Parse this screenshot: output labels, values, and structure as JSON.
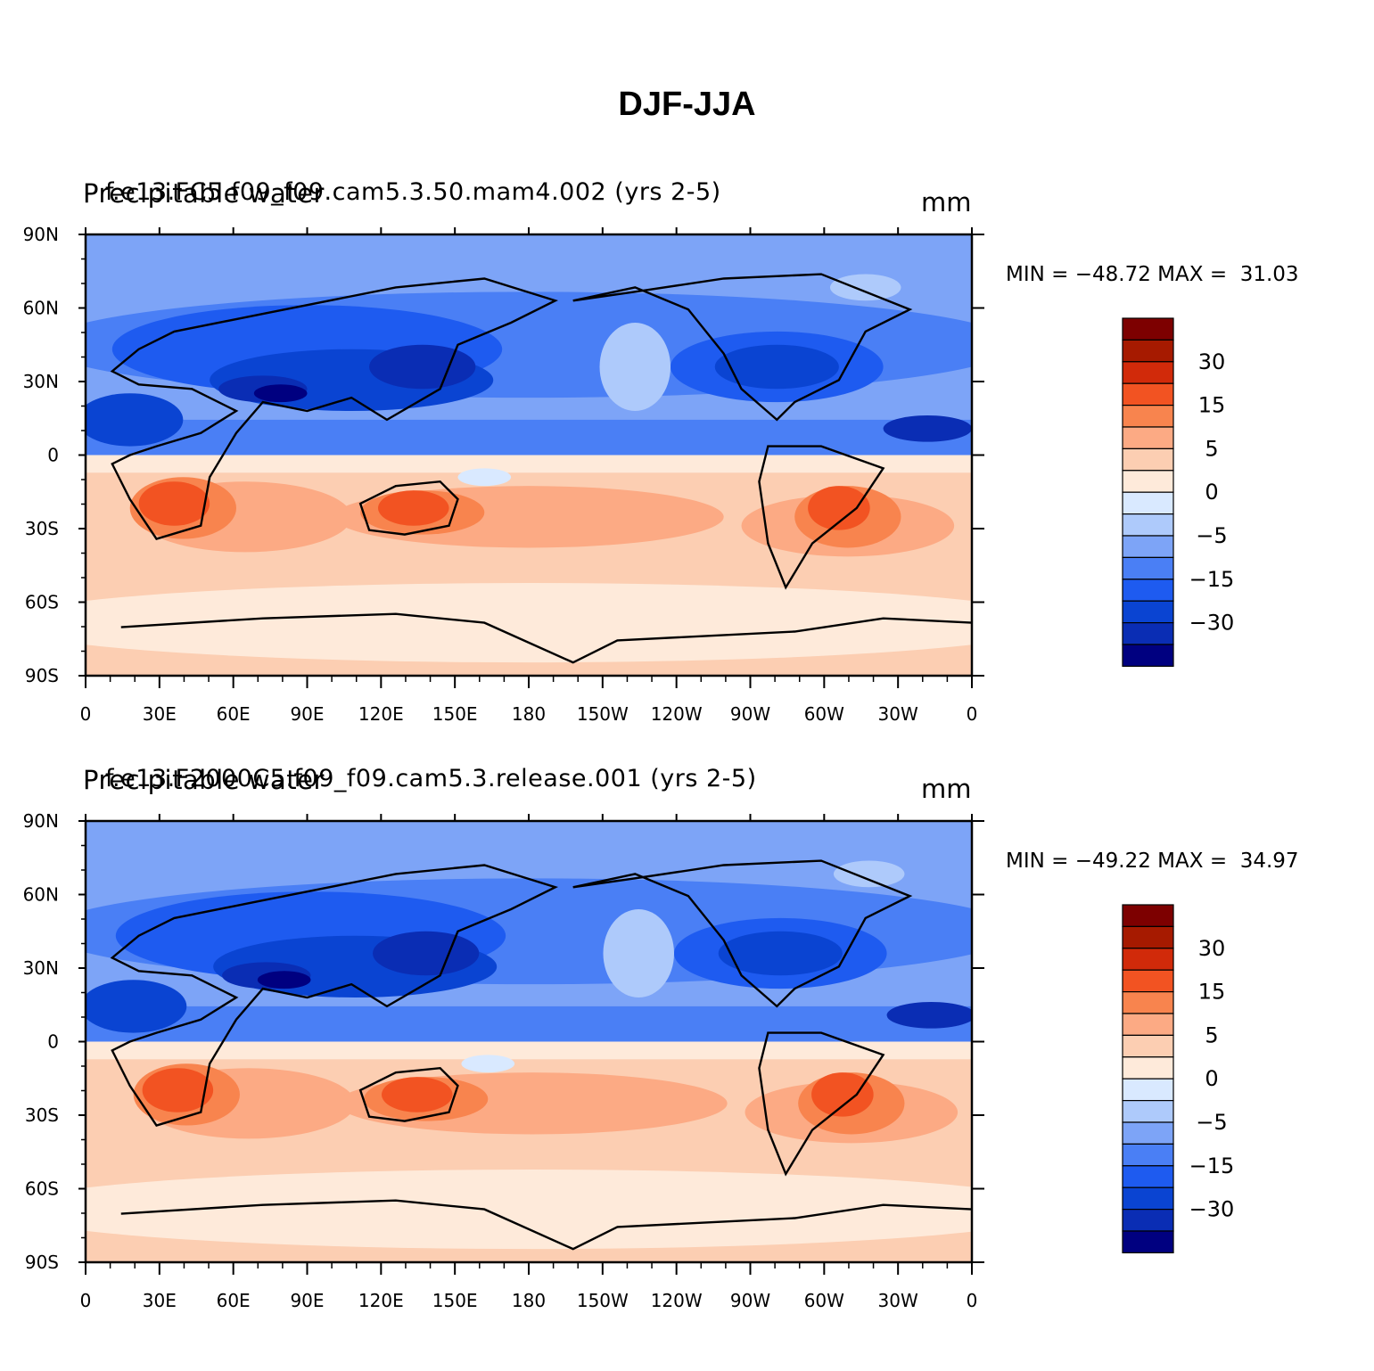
{
  "title": "DJF-JJA",
  "colors": [
    "#000080",
    "#0a2db4",
    "#0a44d2",
    "#1e5bf0",
    "#4a7ff5",
    "#7da4f7",
    "#aecafb",
    "#d9e9ff",
    "#feeada",
    "#fcceb2",
    "#fcaa84",
    "#f8844e",
    "#f25322",
    "#d12a0a",
    "#a61a00",
    "#7d0000"
  ],
  "colorbar_labels": [
    "30",
    "15",
    "5",
    "0",
    "−5",
    "−15",
    "−30"
  ],
  "lat_labels": [
    "90N",
    "60N",
    "30N",
    "0",
    "30S",
    "60S",
    "90S"
  ],
  "lon_labels": [
    "0",
    "30E",
    "60E",
    "90E",
    "120E",
    "150E",
    "180",
    "150W",
    "120W",
    "90W",
    "60W",
    "30W",
    "0"
  ],
  "panels": [
    {
      "variable": "Precipitable water",
      "case": "f.e13.FC5.f09_f09.cam5.3.50.mam4.002 (yrs 2-5)",
      "units": "mm",
      "min_label": "MIN = ",
      "min": "−48.72",
      "max_label": "MAX = ",
      "max": "31.03"
    },
    {
      "variable": "Precipitable water",
      "case": "f.e13.F2000C5.f09_f09.cam5.3.release.001 (yrs 2-5)",
      "units": "mm",
      "min_label": "MIN = ",
      "min": "−49.22",
      "max_label": "MAX = ",
      "max": "34.97"
    }
  ]
}
